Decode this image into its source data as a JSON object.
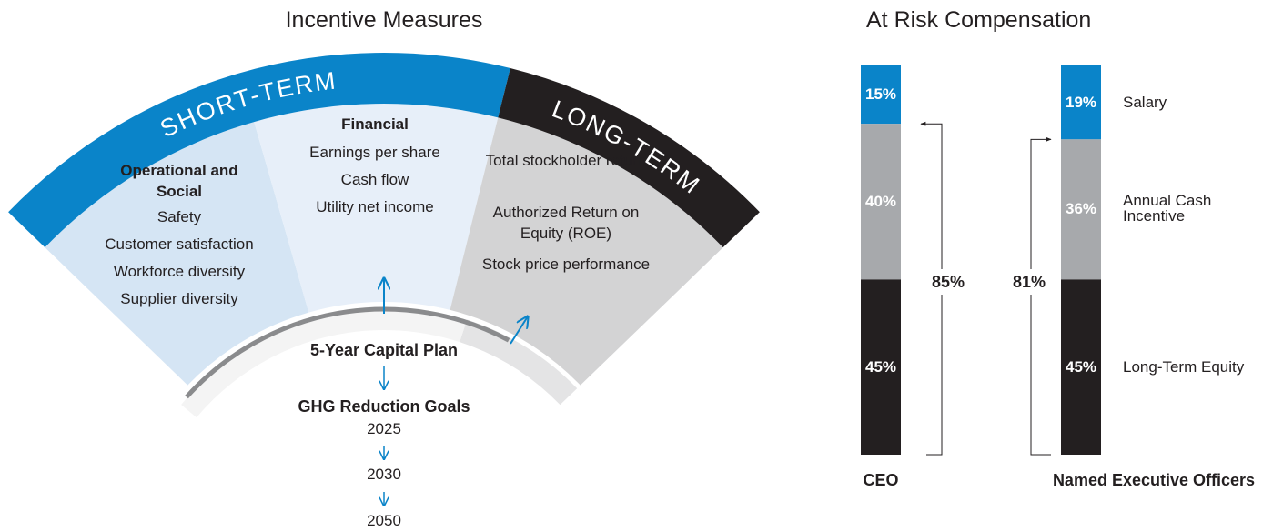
{
  "incentive_measures": {
    "title": "Incentive Measures",
    "bands": [
      "SHORT-TERM",
      "LONG-TERM"
    ],
    "panels": [
      {
        "title": "Operational and Social",
        "items": [
          "Safety",
          "Customer satisfaction",
          "Workforce diversity",
          "Supplier diversity"
        ]
      },
      {
        "title": "Financial",
        "items": [
          "Earnings per share",
          "Cash flow",
          "Utility net income"
        ]
      },
      {
        "items": [
          "Total stockholder return",
          "Authorized Return on Equity (ROE)",
          "Stock price performance"
        ]
      }
    ],
    "foundation": "5-Year Capital Plan",
    "goals_title": "GHG Reduction Goals",
    "goal_years": [
      "2025",
      "2030",
      "2050"
    ]
  },
  "chart_data": {
    "type": "bar",
    "stacked": true,
    "title": "At Risk Compensation",
    "categories": [
      "CEO",
      "Named Executive Officers"
    ],
    "ylim": [
      0,
      100
    ],
    "series": [
      {
        "name": "Salary",
        "color": "#0a84c9",
        "values": [
          15,
          19
        ],
        "value_labels": [
          "15%",
          "19%"
        ]
      },
      {
        "name": "Annual Cash Incentive",
        "color": "#a7a9ac",
        "values": [
          40,
          36
        ],
        "value_labels": [
          "40%",
          "36%"
        ]
      },
      {
        "name": "Long-Term Equity",
        "color": "#231f20",
        "values": [
          45,
          45
        ],
        "value_labels": [
          "45%",
          "45%"
        ]
      }
    ],
    "brackets": [
      {
        "value": 85,
        "label": "85%"
      },
      {
        "value": 81,
        "label": "81%"
      }
    ]
  }
}
